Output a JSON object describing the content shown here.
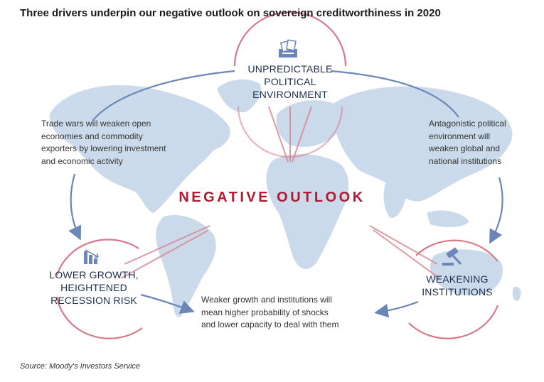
{
  "title": "Three drivers underpin our negative outlook on sovereign creditworthiness in 2020",
  "center": {
    "label": "NEGATIVE OUTLOOK"
  },
  "drivers": [
    {
      "id": "political",
      "lines": [
        "UNPREDICTABLE",
        "POLITICAL",
        "ENVIRONMENT"
      ],
      "icon": "ballot-icon"
    },
    {
      "id": "growth",
      "lines": [
        "LOWER GROWTH,",
        "HEIGHTENED",
        "RECESSION RISK"
      ],
      "icon": "bar-chart-down-icon"
    },
    {
      "id": "institutions",
      "lines": [
        "WEAKENING",
        "INSTITUTIONS"
      ],
      "icon": "gavel-icon"
    }
  ],
  "notes": {
    "left": [
      "Trade wars will weaken open",
      "economies and commodity",
      "exporters by lowering investment",
      "and economic activity"
    ],
    "right": [
      "Antagonistic political",
      "environment will",
      "weaken global and",
      "national institutions"
    ],
    "bottom": [
      "Weaker growth and institutions will",
      "mean higher probability of shocks",
      "and lower capacity to deal with them"
    ]
  },
  "source": "Source: Moody's Investors Service",
  "colors": {
    "accent_red": "#b4182d",
    "arrow_blue": "#6b86b8",
    "map_blue": "#c9d9ea",
    "text_navy": "#1f2f4a"
  }
}
